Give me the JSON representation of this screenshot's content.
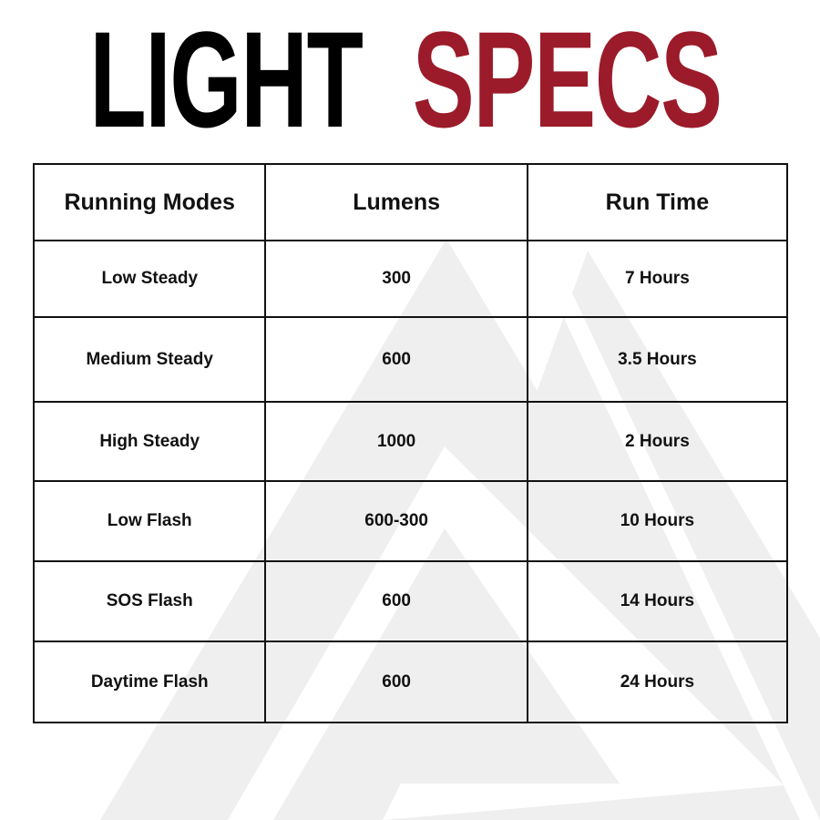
{
  "title": {
    "word1": "LIGHT",
    "word2": "SPECS",
    "accent_color": "#9b1b2a"
  },
  "table": {
    "headers": [
      "Running Modes",
      "Lumens",
      "Run Time"
    ],
    "rows": [
      [
        "Low Steady",
        "300",
        "7 Hours"
      ],
      [
        "Medium Steady",
        "600",
        "3.5 Hours"
      ],
      [
        "High Steady",
        "1000",
        "2 Hours"
      ],
      [
        "Low Flash",
        "600-300",
        "10 Hours"
      ],
      [
        "SOS Flash",
        "600",
        "14 Hours"
      ],
      [
        "Daytime Flash",
        "600",
        "24 Hours"
      ]
    ]
  }
}
